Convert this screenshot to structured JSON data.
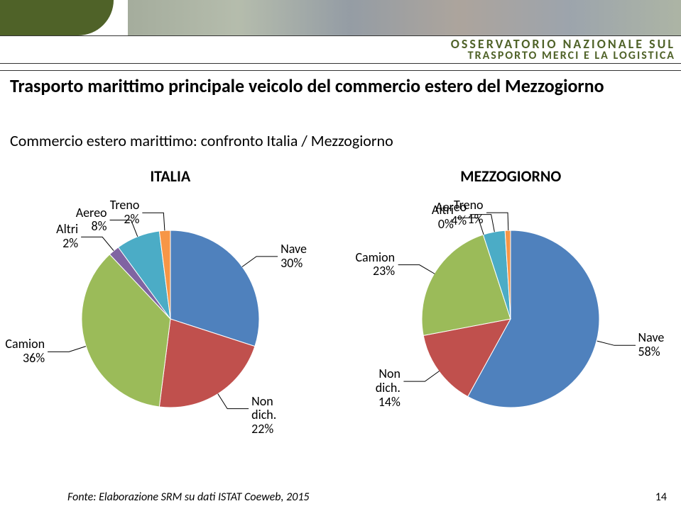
{
  "header": {
    "brand_line1": "OSSERVATORIO NAZIONALE SUL",
    "brand_line2": "TRASPORTO MERCI E LA LOGISTICA",
    "shape_color": "#4f6228",
    "brand_color": "#4f6228"
  },
  "title": {
    "text": "Trasporto marittimo principale veicolo del commercio estero del Mezzogiorno",
    "fontsize": 26,
    "color": "#000000"
  },
  "subtitle": {
    "text": "Commercio estero marittimo: confronto Italia / Mezzogiorno",
    "fontsize": 22,
    "color": "#000000"
  },
  "charts": {
    "label_fontsize": 18,
    "region_fontsize": 22,
    "pie_diameter": 250,
    "italia": {
      "region_label": "ITALIA",
      "slices": [
        {
          "name": "Nave",
          "value": 30,
          "color": "#4f81bd",
          "label": "Nave\n30%"
        },
        {
          "name": "Non dich.",
          "value": 22,
          "color": "#c0504d",
          "label": "Non\ndich.\n22%"
        },
        {
          "name": "Camion",
          "value": 36,
          "color": "#9bbb59",
          "label": "Camion\n36%"
        },
        {
          "name": "Altri",
          "value": 2,
          "color": "#8064a2",
          "label": "Altri\n2%"
        },
        {
          "name": "Aereo",
          "value": 8,
          "color": "#4bacc6",
          "label": "Aereo\n8%"
        },
        {
          "name": "Treno",
          "value": 2,
          "color": "#f79646",
          "label": "Treno\n2%"
        }
      ]
    },
    "mezzogiorno": {
      "region_label": "MEZZOGIORNO",
      "slices": [
        {
          "name": "Nave",
          "value": 58,
          "color": "#4f81bd",
          "label": "Nave\n58%"
        },
        {
          "name": "Non dich.",
          "value": 14,
          "color": "#c0504d",
          "label": "Non\ndich.\n14%"
        },
        {
          "name": "Camion",
          "value": 23,
          "color": "#9bbb59",
          "label": "Camion\n23%"
        },
        {
          "name": "Altri",
          "value": 0,
          "color": "#8064a2",
          "label": "Altri\n0%"
        },
        {
          "name": "Aereo",
          "value": 4,
          "color": "#4bacc6",
          "label": "Aereo\n4%"
        },
        {
          "name": "Treno",
          "value": 1,
          "color": "#f79646",
          "label": "Treno\n1%"
        }
      ]
    }
  },
  "footer": {
    "source": "Fonte: Elaborazione SRM su dati ISTAT Coeweb, 2015",
    "source_fontsize": 16,
    "source_color": "#000000",
    "page_number": "14",
    "page_fontsize": 16
  },
  "style": {
    "background_color": "#ffffff",
    "leader_color": "#000000"
  }
}
